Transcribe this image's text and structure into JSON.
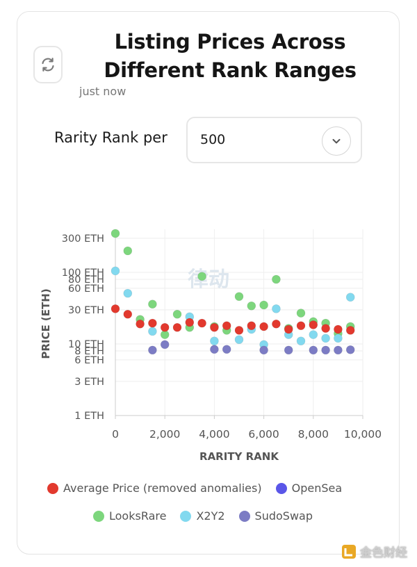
{
  "header": {
    "title": "Listing Prices Across Different Rank Ranges",
    "updated": "just now"
  },
  "controls": {
    "rank_label": "Rarity Rank per",
    "rank_value": "500"
  },
  "watermark": {
    "center_text": "律动",
    "corner_text": "金色财经"
  },
  "chart_data": {
    "type": "scatter",
    "title": "",
    "xlabel": "RARITY RANK",
    "ylabel": "PRICE (ETH)",
    "yscale": "log",
    "xlim": [
      0,
      10000
    ],
    "ylim": [
      1,
      400
    ],
    "xticks": [
      0,
      2000,
      4000,
      6000,
      8000,
      10000
    ],
    "xtick_labels": [
      "0",
      "2,000",
      "4,000",
      "6,000",
      "8,000",
      "10,000"
    ],
    "yticks": [
      1,
      3,
      6,
      8,
      10,
      30,
      60,
      80,
      100,
      300
    ],
    "ytick_labels": [
      "1 ETH",
      "3 ETH",
      "6 ETH",
      "8 ETH",
      "10 ETH",
      "30 ETH",
      "60 ETH",
      "80 ETH",
      "100 ETH",
      "300 ETH"
    ],
    "grid": true,
    "legend_position": "bottom",
    "series": [
      {
        "name": "LooksRare",
        "color": "#7dd67d",
        "points": [
          [
            0,
            350
          ],
          [
            500,
            200
          ],
          [
            1000,
            22
          ],
          [
            1500,
            36
          ],
          [
            2000,
            13.5
          ],
          [
            2500,
            26
          ],
          [
            3000,
            17
          ],
          [
            3500,
            88
          ],
          [
            4000,
            17.5
          ],
          [
            4500,
            15.5
          ],
          [
            5000,
            46
          ],
          [
            5500,
            34
          ],
          [
            6000,
            35
          ],
          [
            6500,
            80
          ],
          [
            7000,
            16.5
          ],
          [
            7500,
            27
          ],
          [
            8000,
            20.5
          ],
          [
            8500,
            19.5
          ],
          [
            9000,
            14
          ],
          [
            9500,
            17.5
          ]
        ]
      },
      {
        "name": "X2Y2",
        "color": "#82d9ef",
        "points": [
          [
            0,
            105
          ],
          [
            500,
            51
          ],
          [
            1500,
            15
          ],
          [
            3000,
            24
          ],
          [
            4000,
            11
          ],
          [
            5000,
            11.5
          ],
          [
            5500,
            16
          ],
          [
            6000,
            9.8
          ],
          [
            6500,
            31
          ],
          [
            7000,
            13.5
          ],
          [
            7500,
            11
          ],
          [
            8000,
            13.5
          ],
          [
            8500,
            12
          ],
          [
            9000,
            12
          ],
          [
            9500,
            45
          ]
        ]
      },
      {
        "name": "SudoSwap",
        "color": "#7c7cc4",
        "points": [
          [
            1500,
            8.2
          ],
          [
            2000,
            9.8
          ],
          [
            4000,
            8.4
          ],
          [
            4500,
            8.4
          ],
          [
            6000,
            8.2
          ],
          [
            7000,
            8.2
          ],
          [
            8000,
            8.2
          ],
          [
            8500,
            8.2
          ],
          [
            9000,
            8.2
          ],
          [
            9500,
            8.3
          ]
        ]
      },
      {
        "name": "Average Price (removed anomalies)",
        "color": "#e2392e",
        "points": [
          [
            0,
            31
          ],
          [
            500,
            26
          ],
          [
            1000,
            19
          ],
          [
            1500,
            19.5
          ],
          [
            2000,
            17
          ],
          [
            2500,
            17
          ],
          [
            3000,
            20
          ],
          [
            3500,
            19.5
          ],
          [
            4000,
            17
          ],
          [
            4500,
            18
          ],
          [
            5000,
            15.5
          ],
          [
            5500,
            18
          ],
          [
            6000,
            17.5
          ],
          [
            6500,
            19
          ],
          [
            7000,
            16
          ],
          [
            7500,
            18
          ],
          [
            8000,
            18.5
          ],
          [
            8500,
            16.5
          ],
          [
            9000,
            16
          ],
          [
            9500,
            15.5
          ]
        ]
      },
      {
        "name": "OpenSea",
        "color": "#5a56e8",
        "points": []
      }
    ],
    "legend": [
      {
        "name": "Average Price (removed anomalies)",
        "color": "#e2392e"
      },
      {
        "name": "OpenSea",
        "color": "#5a56e8"
      },
      {
        "name": "LooksRare",
        "color": "#7dd67d"
      },
      {
        "name": "X2Y2",
        "color": "#82d9ef"
      },
      {
        "name": "SudoSwap",
        "color": "#7c7cc4"
      }
    ]
  }
}
